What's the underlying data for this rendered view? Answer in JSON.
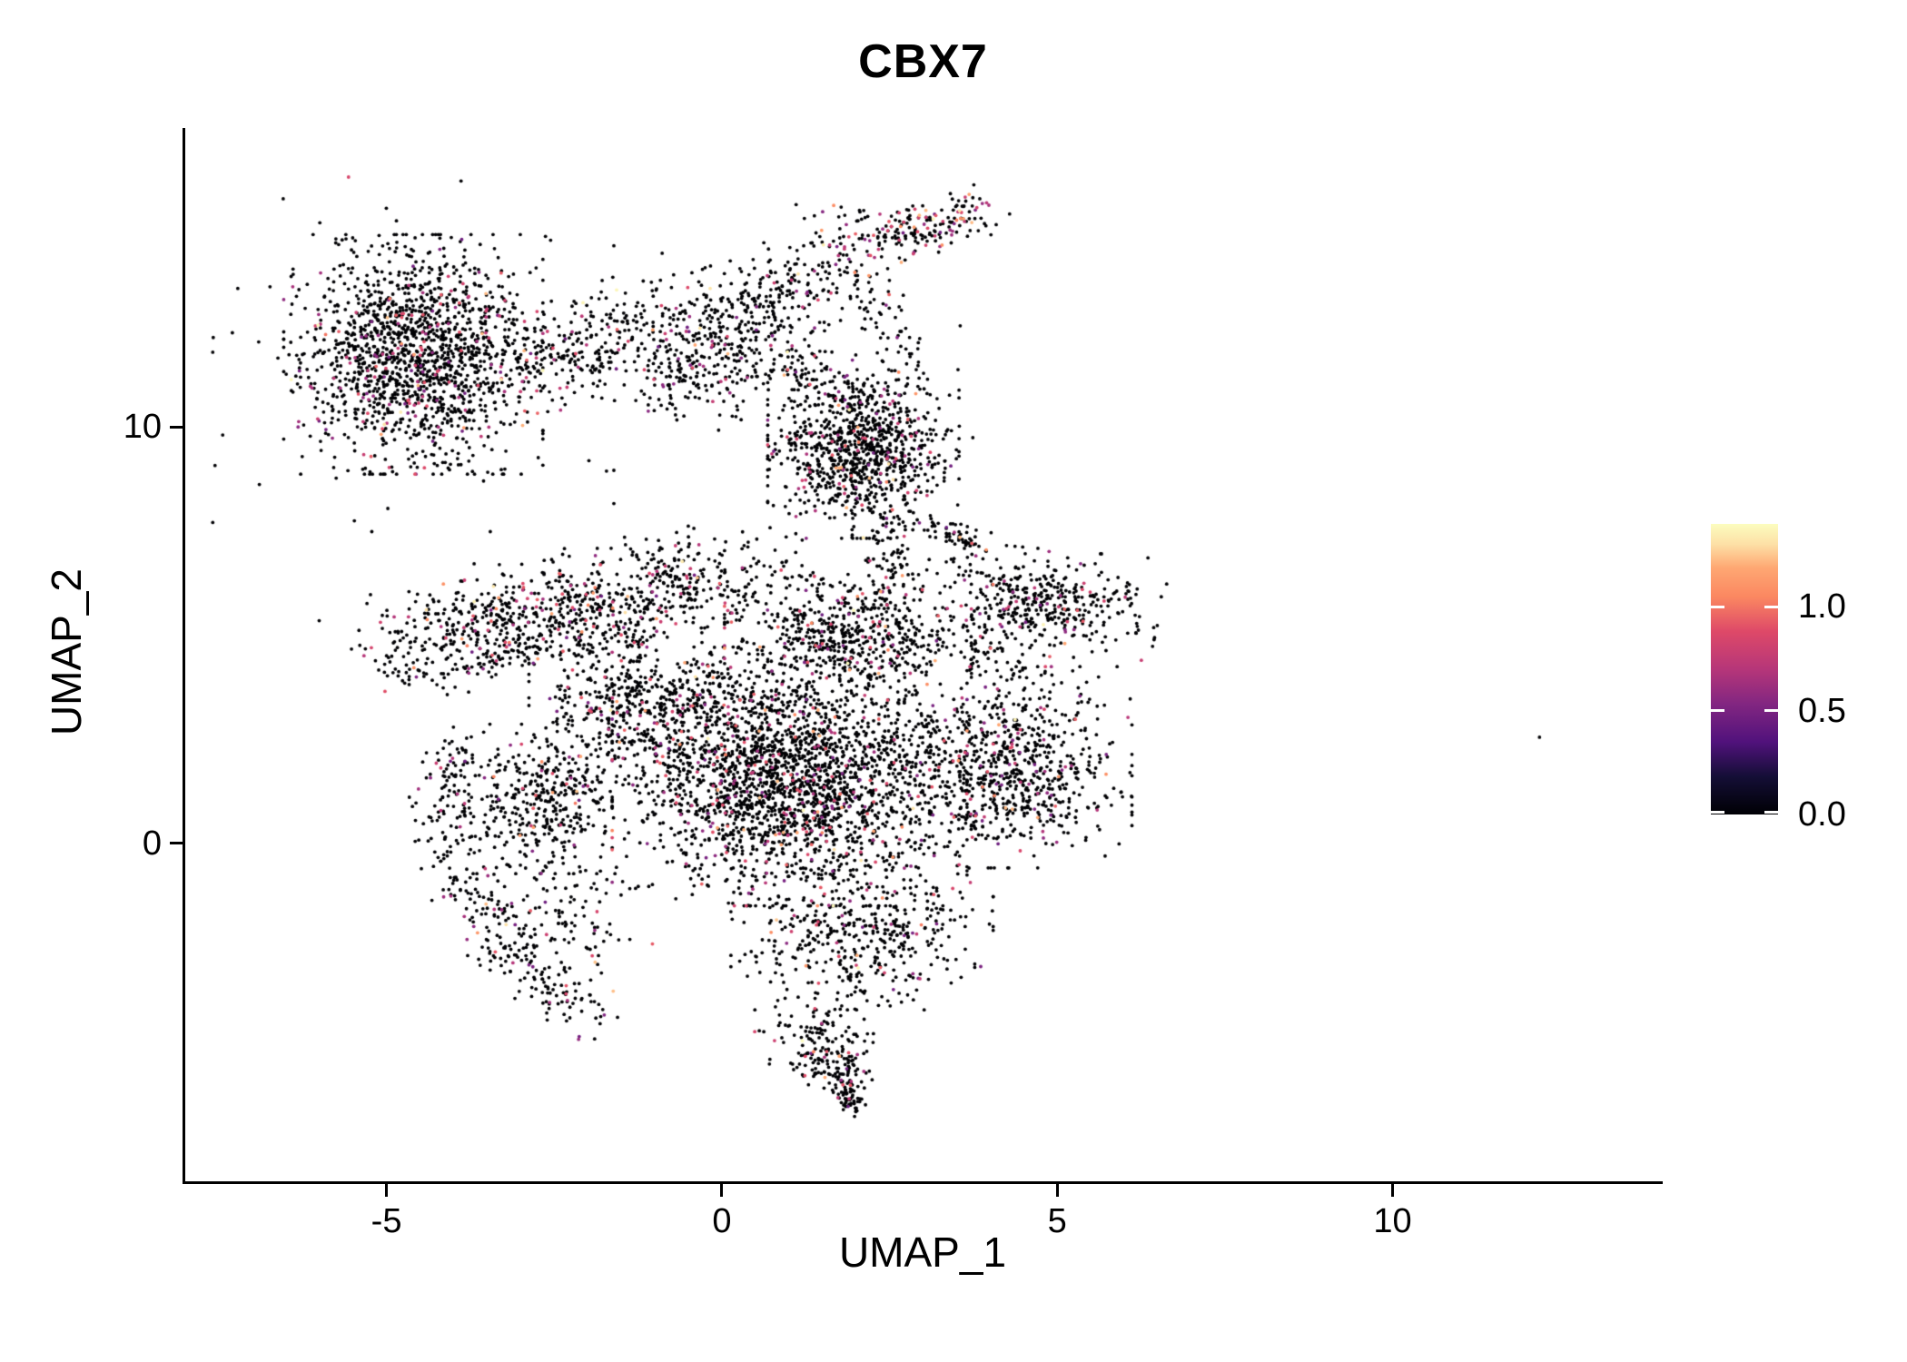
{
  "title": "CBX7",
  "axes": {
    "xlabel": "UMAP_1",
    "ylabel": "UMAP_2",
    "xlim": [
      -8.0,
      14.0
    ],
    "ylim": [
      -8.13,
      17.15
    ],
    "x_ticks": [
      {
        "label": "-5",
        "value": -5
      },
      {
        "label": "0",
        "value": 0
      },
      {
        "label": "5",
        "value": 5
      },
      {
        "label": "10",
        "value": 10
      }
    ],
    "y_ticks": [
      {
        "label": "10",
        "value": 10
      },
      {
        "label": "0",
        "value": 0
      }
    ]
  },
  "colorbar": {
    "colormap": "magma",
    "vmin": 0.0,
    "vmax": 1.4,
    "ticks": [
      {
        "label": "1.0",
        "value": 1.0
      },
      {
        "label": "0.5",
        "value": 0.5
      },
      {
        "label": "0.0",
        "value": 0.0
      }
    ],
    "stops": [
      {
        "t": 0.0,
        "color": "#000004"
      },
      {
        "t": 0.13,
        "color": "#140E36"
      },
      {
        "t": 0.25,
        "color": "#51127C"
      },
      {
        "t": 0.38,
        "color": "#822681"
      },
      {
        "t": 0.5,
        "color": "#B63679"
      },
      {
        "t": 0.63,
        "color": "#DE4968"
      },
      {
        "t": 0.75,
        "color": "#FB8861"
      },
      {
        "t": 0.85,
        "color": "#FEA873"
      },
      {
        "t": 0.93,
        "color": "#FDE0A6"
      },
      {
        "t": 1.0,
        "color": "#FCFDBF"
      }
    ]
  },
  "chart_data": {
    "type": "scatter",
    "title": "CBX7",
    "xlabel": "UMAP_1",
    "ylabel": "UMAP_2",
    "point_radius_px": 1.9,
    "seed": 1234,
    "value_bins": {
      "zero": 0,
      "mid": [
        0.45,
        0.95
      ],
      "high": [
        1.0,
        1.25
      ],
      "top": [
        1.3,
        1.4
      ]
    },
    "default_mix": [
      0.9,
      0.085,
      0.013,
      0.002
    ],
    "outlier_point": {
      "x": 12.19,
      "y": 2.55,
      "value": 0
    },
    "clusters": [
      {
        "name": "top-left-blob",
        "shape": "gauss",
        "cx": -4.6,
        "cy": 11.74,
        "sx": 0.84,
        "sy": 1.25,
        "rot": 0,
        "n": 1500,
        "mix": [
          0.9,
          0.088,
          0.01,
          0.002
        ]
      },
      {
        "name": "top-left-fringe",
        "shape": "gauss",
        "cx": -4.6,
        "cy": 11.74,
        "sx": 1.3,
        "sy": 1.85,
        "rot": 0,
        "n": 150,
        "mix": [
          0.92,
          0.07,
          0.008,
          0.002
        ]
      },
      {
        "name": "bridge-1",
        "shape": "gauss",
        "cx": -2.3,
        "cy": 11.63,
        "sx": 0.45,
        "sy": 0.55,
        "rot": 0,
        "n": 110,
        "mix": [
          0.92,
          0.07,
          0.008,
          0.002
        ]
      },
      {
        "name": "bridge-2",
        "shape": "gauss",
        "cx": -1.28,
        "cy": 12.44,
        "sx": 0.42,
        "sy": 0.5,
        "rot": 0,
        "n": 85,
        "mix": [
          0.92,
          0.07,
          0.008,
          0.002
        ]
      },
      {
        "name": "bridge-3",
        "shape": "gauss",
        "cx": -0.64,
        "cy": 11.2,
        "sx": 0.38,
        "sy": 0.45,
        "rot": 0,
        "n": 60,
        "mix": [
          0.92,
          0.07,
          0.008,
          0.002
        ]
      },
      {
        "name": "bridge-band",
        "shape": "line",
        "x1": -2.77,
        "y1": 11.09,
        "x2": -0.34,
        "y2": 13.05,
        "sigma": 0.5,
        "n": 90,
        "mix": [
          0.93,
          0.06,
          0.008,
          0.002
        ]
      },
      {
        "name": "mid-top-cluster",
        "shape": "gauss",
        "cx": 0.27,
        "cy": 12.18,
        "sx": 0.6,
        "sy": 0.92,
        "rot": -30,
        "n": 380,
        "mix": [
          0.9,
          0.088,
          0.01,
          0.002
        ]
      },
      {
        "name": "mid-top-trail",
        "shape": "line",
        "x1": 0.88,
        "y1": 11.53,
        "x2": 2.09,
        "y2": 10.66,
        "sigma": 0.3,
        "n": 80,
        "mix": [
          0.9,
          0.085,
          0.013,
          0.002
        ]
      },
      {
        "name": "upper-scatter",
        "shape": "line",
        "x1": -0.07,
        "y1": 13.05,
        "x2": 1.42,
        "y2": 13.7,
        "sigma": 0.35,
        "n": 55,
        "mix": [
          0.93,
          0.06,
          0.008,
          0.002
        ]
      },
      {
        "name": "top-spur-band",
        "shape": "line",
        "x1": 2.56,
        "y1": 14.47,
        "x2": 3.73,
        "y2": 15.25,
        "sigma": 0.28,
        "n": 170,
        "mix": [
          0.7,
          0.21,
          0.07,
          0.02
        ]
      },
      {
        "name": "top-spur-lobe",
        "shape": "gauss",
        "cx": 1.79,
        "cy": 14.31,
        "sx": 0.42,
        "sy": 0.55,
        "rot": 0,
        "n": 90,
        "mix": [
          0.8,
          0.16,
          0.03,
          0.01
        ]
      },
      {
        "name": "spur-trail",
        "shape": "line",
        "x1": 2.09,
        "y1": 13.7,
        "x2": 2.77,
        "y2": 11.09,
        "sigma": 0.22,
        "n": 70,
        "mix": [
          0.88,
          0.1,
          0.015,
          0.005
        ]
      },
      {
        "name": "upper-mid-blob",
        "shape": "gauss",
        "cx": 2.11,
        "cy": 9.35,
        "sx": 0.62,
        "sy": 0.88,
        "rot": 0,
        "n": 950,
        "mix": [
          0.91,
          0.078,
          0.01,
          0.002
        ]
      },
      {
        "name": "upper-mid-neck",
        "shape": "line",
        "x1": 2.43,
        "y1": 7.82,
        "x2": 2.61,
        "y2": 6.19,
        "sigma": 0.18,
        "n": 65,
        "mix": [
          0.9,
          0.085,
          0.013,
          0.002
        ]
      },
      {
        "name": "mid-streak",
        "shape": "line",
        "x1": 3.14,
        "y1": 7.65,
        "x2": 3.82,
        "y2": 7.12,
        "sigma": 0.13,
        "n": 55,
        "mix": [
          0.92,
          0.07,
          0.008,
          0.002
        ]
      },
      {
        "name": "left-band",
        "shape": "line",
        "x1": -4.87,
        "y1": 4.82,
        "x2": 0.36,
        "y2": 6.56,
        "sigma": 0.55,
        "n": 850,
        "mix": [
          0.865,
          0.115,
          0.015,
          0.005
        ]
      },
      {
        "name": "left-band-lower",
        "shape": "line",
        "x1": -4.84,
        "y1": 3.94,
        "x2": -1.29,
        "y2": 5.03,
        "sigma": 0.2,
        "n": 110,
        "mix": [
          0.9,
          0.085,
          0.013,
          0.002
        ]
      },
      {
        "name": "right-mid-cluster",
        "shape": "gauss",
        "cx": 4.76,
        "cy": 5.8,
        "sx": 0.78,
        "sy": 0.55,
        "rot": -8,
        "n": 430,
        "mix": [
          0.875,
          0.105,
          0.015,
          0.005
        ]
      },
      {
        "name": "right-mid-link",
        "shape": "line",
        "x1": 3.57,
        "y1": 5.21,
        "x2": 4.38,
        "y2": 4.12,
        "sigma": 0.25,
        "n": 55,
        "mix": [
          0.9,
          0.085,
          0.013,
          0.002
        ]
      },
      {
        "name": "main-mass-center",
        "shape": "gauss",
        "cx": 1.01,
        "cy": 1.61,
        "sx": 1.15,
        "sy": 1.35,
        "rot": 0,
        "n": 2400,
        "mix": [
          0.9,
          0.085,
          0.013,
          0.002
        ]
      },
      {
        "name": "main-mass-right",
        "shape": "gauss",
        "cx": 4.32,
        "cy": 1.83,
        "sx": 0.78,
        "sy": 1.05,
        "rot": 0,
        "n": 800,
        "mix": [
          0.895,
          0.09,
          0.013,
          0.002
        ]
      },
      {
        "name": "main-mass-upper",
        "shape": "gauss",
        "cx": 1.88,
        "cy": 5.1,
        "sx": 0.8,
        "sy": 0.72,
        "rot": 0,
        "n": 600,
        "mix": [
          0.9,
          0.085,
          0.013,
          0.002
        ]
      },
      {
        "name": "main-mass-upper-left",
        "shape": "gauss",
        "cx": -1.22,
        "cy": 3.36,
        "sx": 0.72,
        "sy": 0.85,
        "rot": 0,
        "n": 380,
        "mix": [
          0.9,
          0.085,
          0.013,
          0.002
        ]
      },
      {
        "name": "main-mass-lower",
        "shape": "gauss",
        "cx": 2.09,
        "cy": -2.2,
        "sx": 0.85,
        "sy": 0.78,
        "rot": 0,
        "n": 450,
        "mix": [
          0.9,
          0.085,
          0.013,
          0.002
        ]
      },
      {
        "name": "bottom-tail",
        "shape": "line",
        "x1": 1.27,
        "y1": -4.16,
        "x2": 1.96,
        "y2": -6.4,
        "sigma": 0.45,
        "taper": true,
        "n": 260,
        "mix": [
          0.91,
          0.08,
          0.008,
          0.002
        ]
      },
      {
        "name": "left-arm-blob",
        "shape": "gauss",
        "cx": -2.64,
        "cy": 1.07,
        "sx": 0.52,
        "sy": 0.78,
        "rot": 0,
        "n": 380,
        "mix": [
          0.9,
          0.085,
          0.013,
          0.002
        ]
      },
      {
        "name": "left-crescent",
        "shape": "path",
        "points": [
          [
            -3.92,
            2.27
          ],
          [
            -4.09,
            0.96
          ],
          [
            -3.88,
            -0.57
          ],
          [
            -3.38,
            -2.09
          ],
          [
            -2.64,
            -3.4
          ],
          [
            -1.89,
            -4.27
          ]
        ],
        "sigma": 0.28,
        "n": 330,
        "mix": [
          0.88,
          0.1,
          0.015,
          0.005
        ]
      },
      {
        "name": "crescent-inner-sparse",
        "shape": "gauss",
        "cx": -2.3,
        "cy": -1.76,
        "sx": 0.55,
        "sy": 0.78,
        "rot": 0,
        "n": 110,
        "mix": [
          0.93,
          0.06,
          0.009,
          0.001
        ]
      },
      {
        "name": "band-to-mass-bridge",
        "shape": "line",
        "x1": -2.09,
        "y1": 2.92,
        "x2": 0.2,
        "y2": 3.94,
        "sigma": 0.3,
        "n": 90,
        "mix": [
          0.9,
          0.085,
          0.013,
          0.002
        ]
      },
      {
        "name": "sparse-noise",
        "shape": "uniform",
        "x": [
          -4.0,
          4.0
        ],
        "y": [
          -5.0,
          13.0
        ],
        "n": 30,
        "mix": [
          0.92,
          0.07,
          0.008,
          0.002
        ]
      }
    ]
  }
}
